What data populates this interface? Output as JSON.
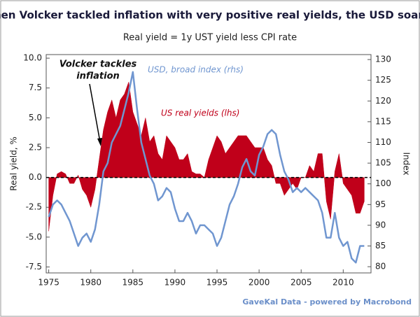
{
  "chart_data": {
    "type": "line",
    "title": "When Volcker tackled inflation with very positive real yields, the USD soared",
    "subtitle": "Real yield = 1y UST yield less CPI rate",
    "ylabel": "Real yield, %",
    "y2label": "Index",
    "annotation": [
      "Volcker tackles",
      "inflation"
    ],
    "source": "GaveKal Data - powered by Macrobond",
    "xlim": [
      1974.7,
      2013.3
    ],
    "xticks": [
      1975,
      1980,
      1985,
      1990,
      1995,
      2000,
      2005,
      2010
    ],
    "ylim": [
      -8.0,
      10.3
    ],
    "yticks": [
      {
        "value": 10,
        "label": "10.0"
      },
      7.5,
      {
        "value": 5,
        "label": "5.0"
      },
      2.5,
      {
        "value": 0,
        "label": "0.0"
      },
      -2.5,
      {
        "value": -5,
        "label": "-5.0"
      },
      -7.5
    ],
    "y2lim": [
      78.5,
      131.2
    ],
    "y2ticks": [
      80,
      85,
      90,
      95,
      100,
      105,
      110,
      115,
      120,
      125,
      130
    ],
    "x": [
      1975.0,
      1975.5,
      1976.0,
      1976.5,
      1977.0,
      1977.5,
      1978.0,
      1978.5,
      1979.0,
      1979.5,
      1980.0,
      1980.5,
      1981.0,
      1981.5,
      1982.0,
      1982.5,
      1983.0,
      1983.5,
      1984.0,
      1984.5,
      1985.0,
      1985.5,
      1986.0,
      1986.5,
      1987.0,
      1987.5,
      1988.0,
      1988.5,
      1989.0,
      1989.5,
      1990.0,
      1990.5,
      1991.0,
      1991.5,
      1992.0,
      1992.5,
      1993.0,
      1993.5,
      1994.0,
      1994.5,
      1995.0,
      1995.5,
      1996.0,
      1996.5,
      1997.0,
      1997.5,
      1998.0,
      1998.5,
      1999.0,
      1999.5,
      2000.0,
      2000.5,
      2001.0,
      2001.5,
      2002.0,
      2002.5,
      2003.0,
      2003.5,
      2004.0,
      2004.5,
      2005.0,
      2005.5,
      2006.0,
      2006.5,
      2007.0,
      2007.5,
      2008.0,
      2008.5,
      2009.0,
      2009.5,
      2010.0,
      2010.5,
      2011.0,
      2011.5,
      2012.0,
      2012.5
    ],
    "series": [
      {
        "name": "US real yields (lhs)",
        "type": "area",
        "axis": "y",
        "color": "#c0001a",
        "values": [
          -4.5,
          -1.5,
          0.3,
          0.5,
          0.3,
          -0.5,
          -0.5,
          0.2,
          -1.0,
          -1.5,
          -2.5,
          -1.0,
          1.5,
          4.0,
          5.5,
          6.5,
          5.0,
          6.5,
          7.0,
          8.0,
          5.5,
          4.5,
          3.5,
          5.0,
          3.0,
          3.5,
          2.0,
          1.5,
          3.5,
          3.0,
          2.5,
          1.5,
          1.5,
          2.0,
          0.5,
          0.3,
          0.3,
          0.0,
          1.5,
          2.5,
          3.5,
          3.0,
          2.0,
          2.5,
          3.0,
          3.5,
          3.5,
          3.5,
          3.0,
          2.5,
          2.5,
          2.5,
          1.5,
          1.0,
          -0.5,
          -0.5,
          -1.5,
          -1.0,
          -0.5,
          -1.0,
          0.0,
          0.0,
          1.0,
          0.5,
          2.0,
          2.0,
          -2.0,
          -3.5,
          0.5,
          2.0,
          -0.5,
          -1.0,
          -1.5,
          -3.0,
          -3.0,
          -2.0
        ]
      },
      {
        "name": "USD, broad index (rhs)",
        "type": "line",
        "axis": "y2",
        "color": "#7096d0",
        "values": [
          92,
          95,
          96,
          95,
          93,
          91,
          88,
          85,
          87,
          88,
          86,
          89,
          95,
          103,
          105,
          110,
          112,
          114,
          118,
          122,
          127,
          118,
          110,
          106,
          102,
          100,
          96,
          97,
          99,
          98,
          94,
          91,
          91,
          93,
          91,
          88,
          90,
          90,
          89,
          88,
          85,
          87,
          91,
          95,
          97,
          100,
          104,
          106,
          103,
          102,
          107,
          109,
          112,
          113,
          112,
          107,
          103,
          101,
          98,
          99,
          98,
          99,
          98,
          97,
          96,
          93,
          87,
          87,
          93,
          87,
          85,
          86,
          82,
          81,
          85,
          85
        ]
      }
    ]
  }
}
